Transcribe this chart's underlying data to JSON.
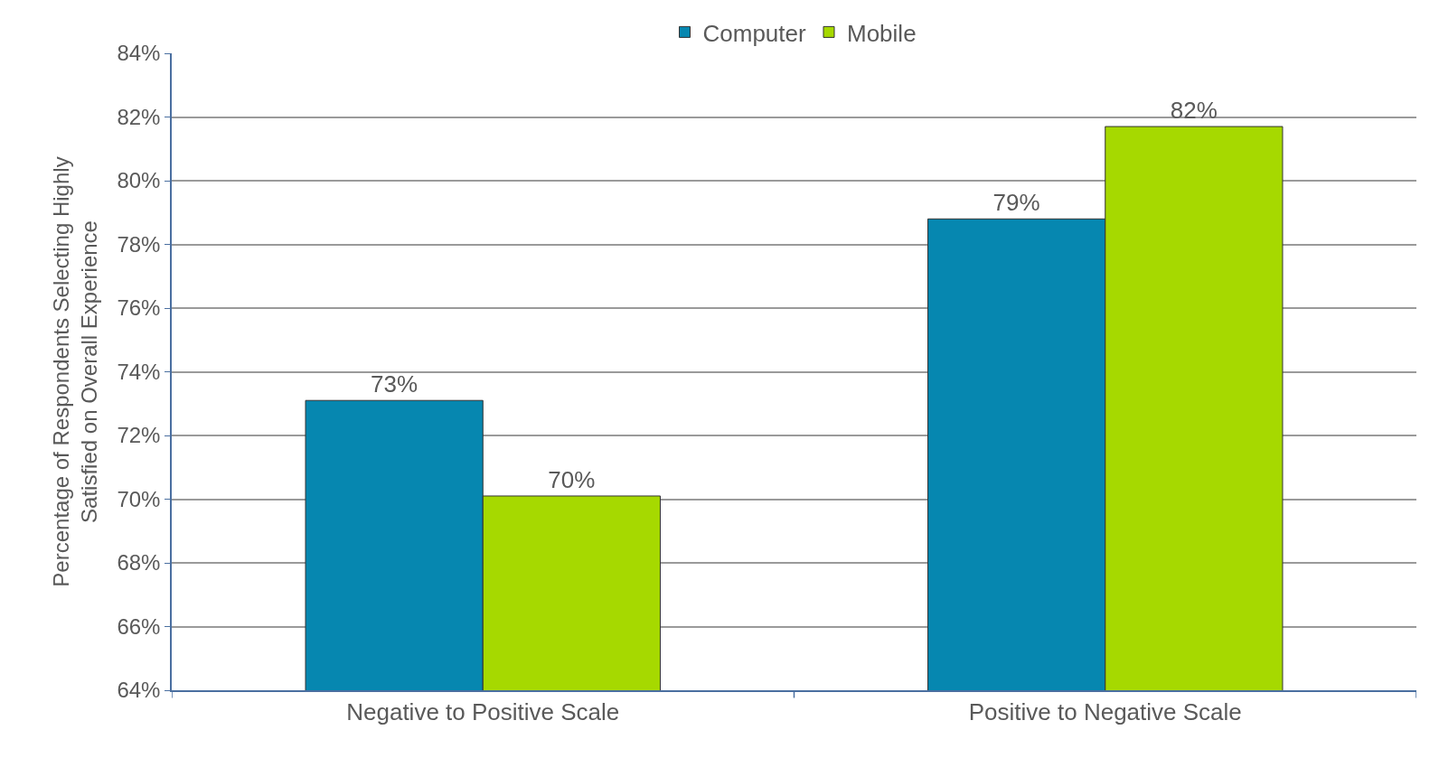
{
  "chart_data": {
    "type": "bar",
    "ylabel": "Percentage of Respondents Selecting Highly\nSatisfied on Overall Experience",
    "categories": [
      "Negative to Positive Scale",
      "Positive to Negative Scale"
    ],
    "series": [
      {
        "name": "Computer",
        "color": "#0687b0",
        "values": [
          73.1,
          78.8
        ],
        "value_labels": [
          "73%",
          "79%"
        ]
      },
      {
        "name": "Mobile",
        "color": "#a6d900",
        "values": [
          70.1,
          81.7
        ],
        "value_labels": [
          "70%",
          "82%"
        ]
      }
    ],
    "ylim": [
      64,
      84
    ],
    "yticks": [
      {
        "value": 64,
        "label": "64%"
      },
      {
        "value": 66,
        "label": "66%"
      },
      {
        "value": 68,
        "label": "68%"
      },
      {
        "value": 70,
        "label": "70%"
      },
      {
        "value": 72,
        "label": "72%"
      },
      {
        "value": 74,
        "label": "74%"
      },
      {
        "value": 76,
        "label": "76%"
      },
      {
        "value": 78,
        "label": "78%"
      },
      {
        "value": 80,
        "label": "80%"
      },
      {
        "value": 82,
        "label": "82%"
      },
      {
        "value": 84,
        "label": "84%"
      }
    ],
    "grid": "y",
    "legend": "top"
  }
}
